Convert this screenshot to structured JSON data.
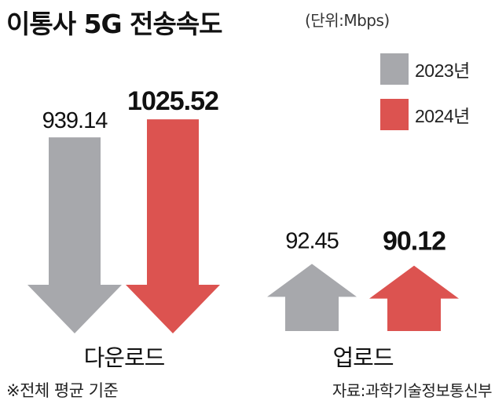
{
  "chart_data": {
    "type": "bar",
    "title": "이통사 5G 전송속도",
    "unit_note": "(단위:Mbps)",
    "categories": [
      "다운로드",
      "업로드"
    ],
    "series": [
      {
        "name": "2023년",
        "color": "#a7a8ac",
        "values": [
          939.14,
          92.45
        ],
        "labels": [
          "939.14",
          "92.45"
        ]
      },
      {
        "name": "2024년",
        "color": "#dc5350",
        "values": [
          1025.52,
          90.12
        ],
        "labels": [
          "1025.52",
          "90.12"
        ]
      }
    ],
    "legend_position": "top-right",
    "footnote": "※전체 평균 기준",
    "source": "자료:과학기술정보통신부"
  }
}
